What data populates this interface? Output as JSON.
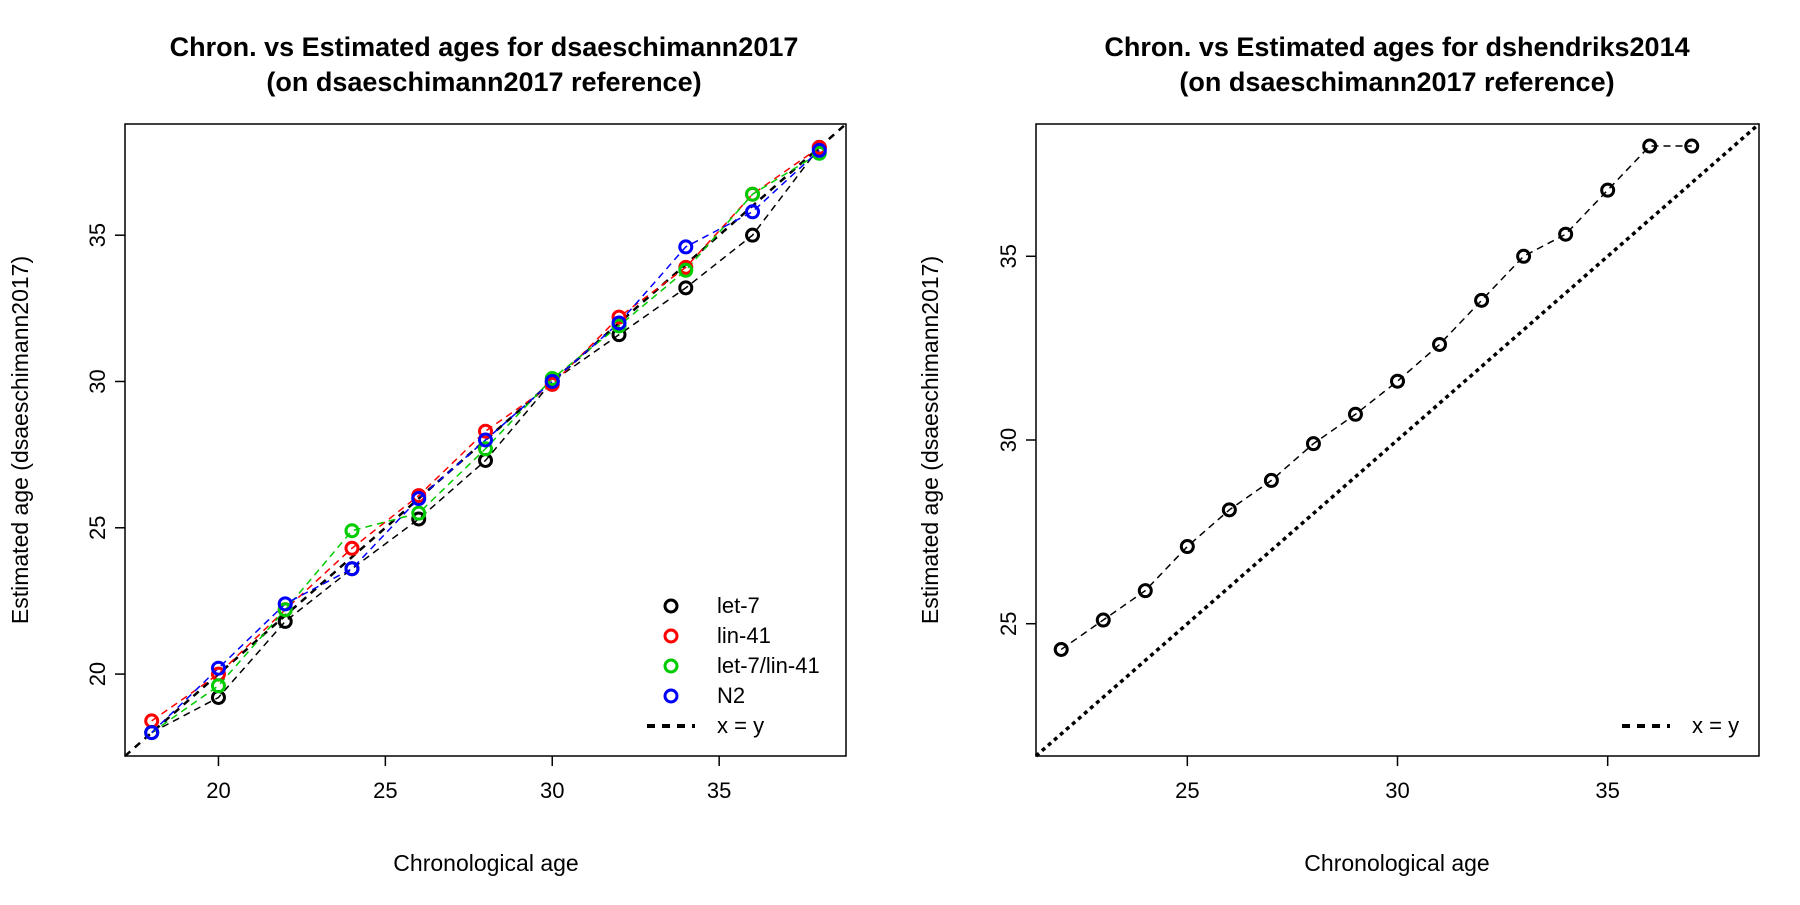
{
  "colors": {
    "let7": "#000000",
    "lin41": "#ff0000",
    "let7lin41": "#00cc00",
    "n2": "#0000ff",
    "identity": "#000000"
  },
  "chart_data": [
    {
      "type": "line",
      "title_line1": "Chron. vs Estimated ages for dsaeschimann2017",
      "title_line2": "(on dsaeschimann2017 reference)",
      "xlabel": "Chronological age",
      "ylabel": "Estimated age (dsaeschimann2017)",
      "xlim": [
        17.2,
        38.8
      ],
      "ylim": [
        17.2,
        38.8
      ],
      "xticks": [
        20,
        25,
        30,
        35
      ],
      "yticks": [
        20,
        25,
        30,
        35
      ],
      "grid": false,
      "legend_position": "bottom-right",
      "reference_line": {
        "name": "x = y",
        "slope": 1,
        "intercept": 0
      },
      "series": [
        {
          "name": "let-7",
          "color_key": "let7",
          "x": [
            18,
            20,
            22,
            24,
            26,
            28,
            30,
            32,
            34,
            36,
            38
          ],
          "y": [
            18.0,
            19.2,
            21.8,
            23.6,
            25.3,
            27.3,
            30.0,
            31.6,
            33.2,
            35.0,
            38.0
          ]
        },
        {
          "name": "lin-41",
          "color_key": "lin41",
          "x": [
            18,
            20,
            22,
            24,
            26,
            28,
            30,
            32,
            34,
            36,
            38
          ],
          "y": [
            18.4,
            20.0,
            22.2,
            24.3,
            26.1,
            28.3,
            29.9,
            32.2,
            33.9,
            36.4,
            38.0
          ]
        },
        {
          "name": "let-7/lin-41",
          "color_key": "let7lin41",
          "x": [
            18,
            20,
            22,
            24,
            26,
            28,
            30,
            32,
            34,
            36,
            38
          ],
          "y": [
            18.0,
            19.6,
            22.2,
            24.9,
            25.5,
            27.7,
            30.1,
            31.9,
            33.8,
            36.4,
            37.8
          ]
        },
        {
          "name": "N2",
          "color_key": "n2",
          "x": [
            18,
            20,
            22,
            24,
            26,
            28,
            30,
            32,
            34,
            36,
            38
          ],
          "y": [
            18.0,
            20.2,
            22.4,
            23.6,
            26.0,
            28.0,
            30.0,
            32.0,
            34.6,
            35.8,
            37.9
          ]
        }
      ]
    },
    {
      "type": "line",
      "title_line1": "Chron. vs Estimated ages for dshendriks2014",
      "title_line2": "(on dsaeschimann2017 reference)",
      "xlabel": "Chronological age",
      "ylabel": "Estimated age (dsaeschimann2017)",
      "xlim": [
        21.4,
        38.6
      ],
      "ylim": [
        21.4,
        38.6
      ],
      "xticks": [
        25,
        30,
        35
      ],
      "yticks": [
        25,
        30,
        35
      ],
      "grid": false,
      "legend_position": "bottom-right",
      "reference_line": {
        "name": "x = y",
        "slope": 1,
        "intercept": 0
      },
      "series": [
        {
          "name": "",
          "color_key": "let7",
          "x": [
            22,
            23,
            24,
            25,
            26,
            27,
            28,
            29,
            30,
            31,
            32,
            33,
            34,
            35,
            36,
            37
          ],
          "y": [
            24.3,
            25.1,
            25.9,
            27.1,
            28.1,
            28.9,
            29.9,
            30.7,
            31.6,
            32.6,
            33.8,
            35.0,
            35.6,
            36.8,
            38.0,
            38.0
          ]
        }
      ]
    }
  ]
}
